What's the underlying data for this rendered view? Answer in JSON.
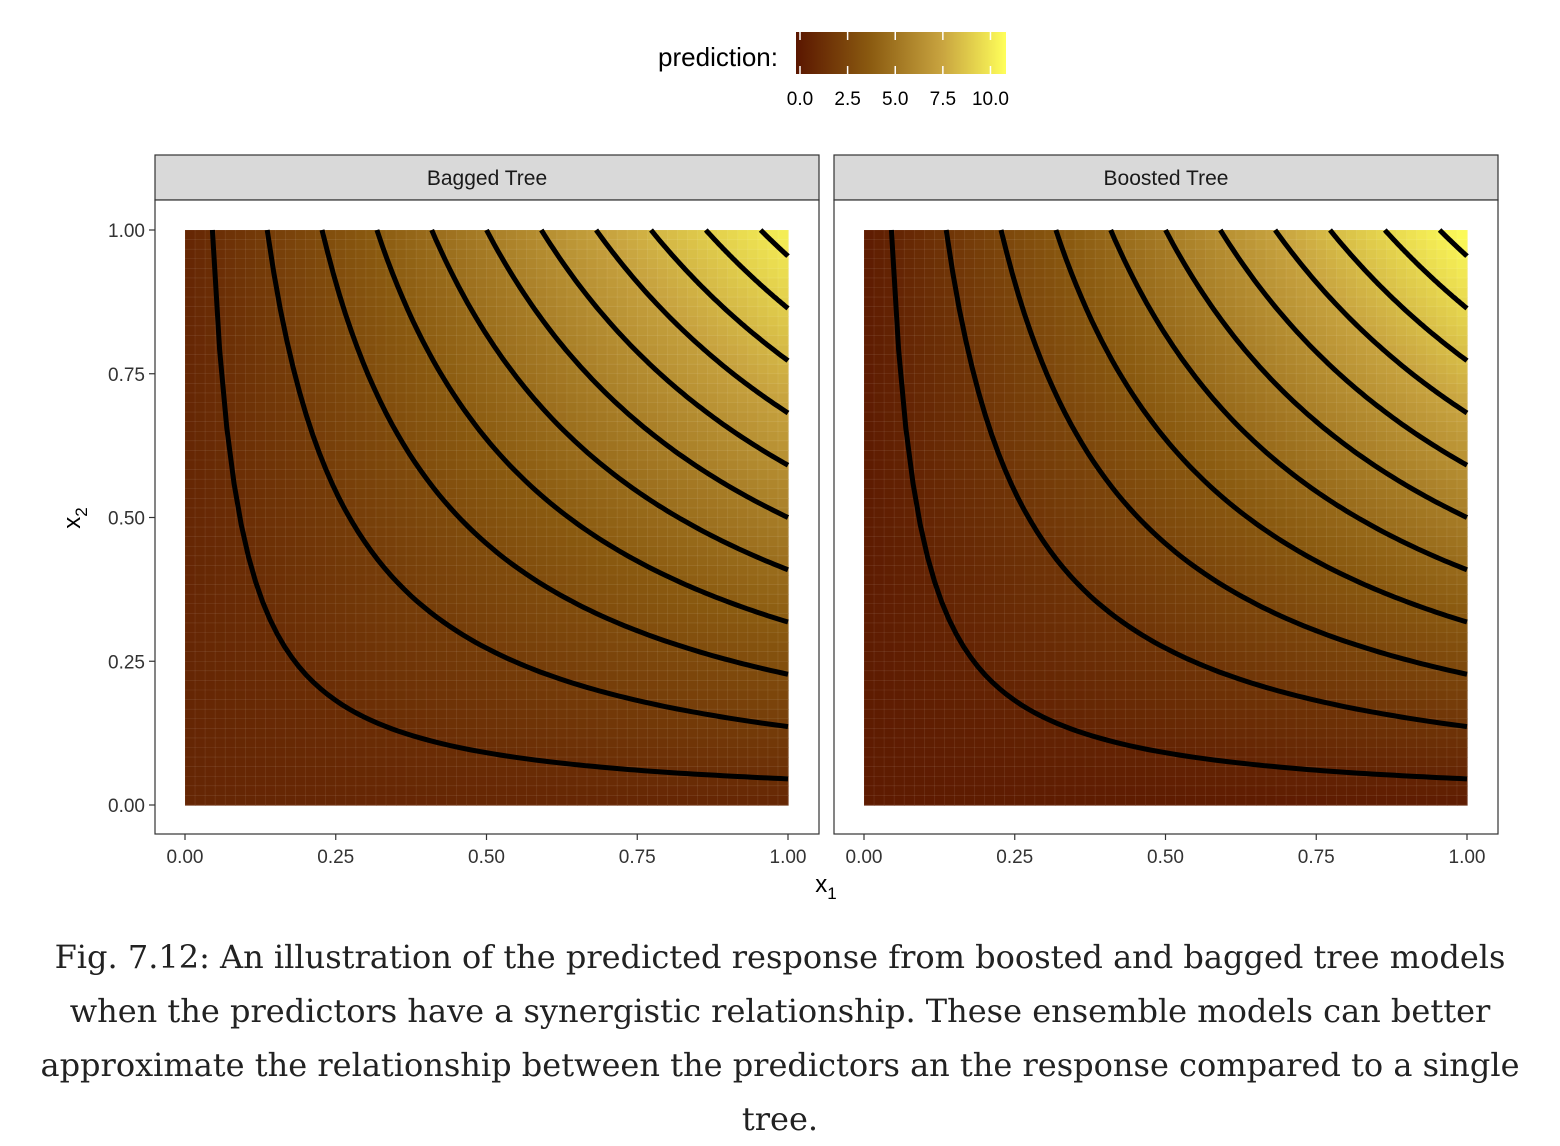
{
  "chart_data": {
    "type": "heatmap",
    "description": "contour",
    "legend": {
      "title": "prediction:",
      "ticks": [
        "0.0",
        "2.5",
        "5.0",
        "7.5",
        "10.0"
      ],
      "tick_values": [
        0,
        2.5,
        5,
        7.5,
        10
      ],
      "range": [
        0,
        11
      ],
      "colors": [
        "#5a1600",
        "#8a5a10",
        "#c9a540",
        "#ffff5a"
      ]
    },
    "x_label": "x",
    "x_subscript": "1",
    "y_label": "x",
    "y_subscript": "2",
    "x_ticks": [
      "0.00",
      "0.25",
      "0.50",
      "0.75",
      "1.00"
    ],
    "y_ticks": [
      "0.00",
      "0.25",
      "0.50",
      "0.75",
      "1.00"
    ],
    "x_tick_values": [
      0,
      0.25,
      0.5,
      0.75,
      1
    ],
    "y_tick_values": [
      0,
      0.25,
      0.5,
      0.75,
      1
    ],
    "xlim": [
      0,
      1
    ],
    "ylim": [
      0,
      1
    ],
    "contour_levels": [
      0.5,
      1.5,
      2.5,
      3.5,
      4.5,
      5.5,
      6.5,
      7.5,
      8.5,
      9.5,
      10.5
    ],
    "contour_function": "prediction = 11 * x1 * x2",
    "panels": [
      {
        "name": "Bagged Tree",
        "prediction_max": 10.5,
        "prediction_min": 0.9
      },
      {
        "name": "Boosted Tree",
        "prediction_max": 11,
        "prediction_min": 0.3
      }
    ]
  },
  "caption": "Fig. 7.12: An illustration of the predicted response from boosted and bagged tree models when the predictors have a synergistic relationship. These ensemble models can better approximate the relationship between the predictors an the response compared to a single tree."
}
